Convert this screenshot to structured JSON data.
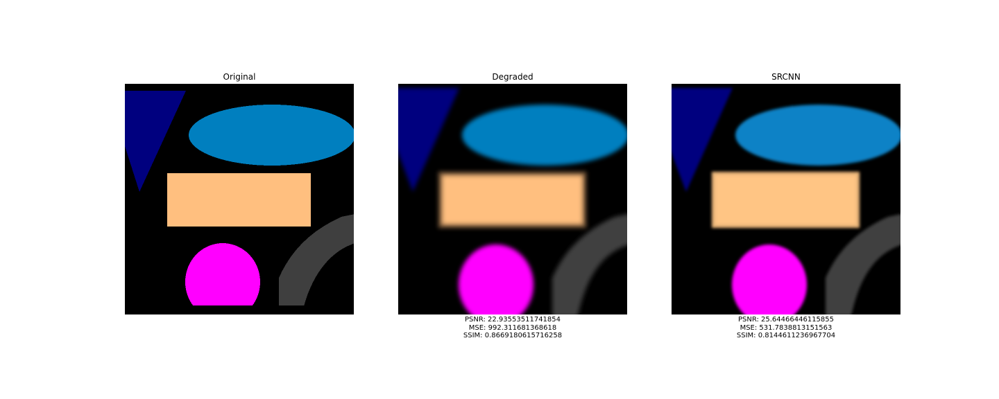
{
  "panels": [
    {
      "title": "Original",
      "metrics": null
    },
    {
      "title": "Degraded",
      "metrics": {
        "psnr": "PSNR: 22.93553511741854",
        "mse": "MSE: 992.311681368618",
        "ssim": "SSIM: 0.8669180615716258"
      }
    },
    {
      "title": "SRCNN",
      "metrics": {
        "psnr": "PSNR: 25.64466446115855",
        "mse": "MSE: 531.7838813151563",
        "ssim": "SSIM: 0.8144611236967704"
      }
    }
  ],
  "colors": {
    "background": "#000000",
    "triangle": "#00007f",
    "ellipse": "#007fbf",
    "rectangle": "#ffbf7f",
    "circle": "#ff00ff",
    "arc": "#3f3f3f"
  }
}
